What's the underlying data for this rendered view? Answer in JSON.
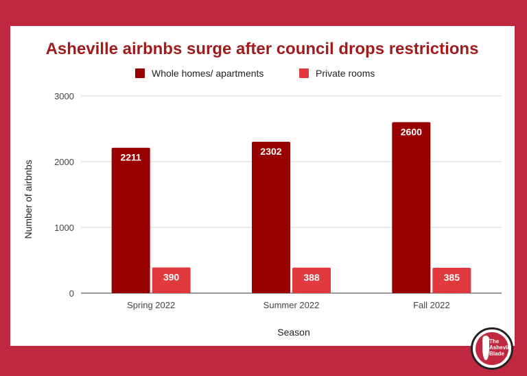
{
  "chart_data": {
    "type": "bar",
    "title": "Asheville airbnbs surge after council drops restrictions",
    "xlabel": "Season",
    "ylabel": "Number of airbnbs",
    "categories": [
      "Spring 2022",
      "Summer 2022",
      "Fall 2022"
    ],
    "series": [
      {
        "name": "Whole homes/ apartments",
        "values": [
          2211,
          2302,
          2600
        ],
        "color": "#990000"
      },
      {
        "name": "Private rooms",
        "values": [
          390,
          388,
          385
        ],
        "color": "#e0393e"
      }
    ],
    "ylim": [
      0,
      3000
    ],
    "yticks": [
      "0",
      "1000",
      "2000",
      "3000"
    ],
    "grid": true,
    "legend_position": "top",
    "data_labels": true
  },
  "logo": {
    "text_lines": [
      "The",
      "Asheville",
      "Blade"
    ]
  }
}
